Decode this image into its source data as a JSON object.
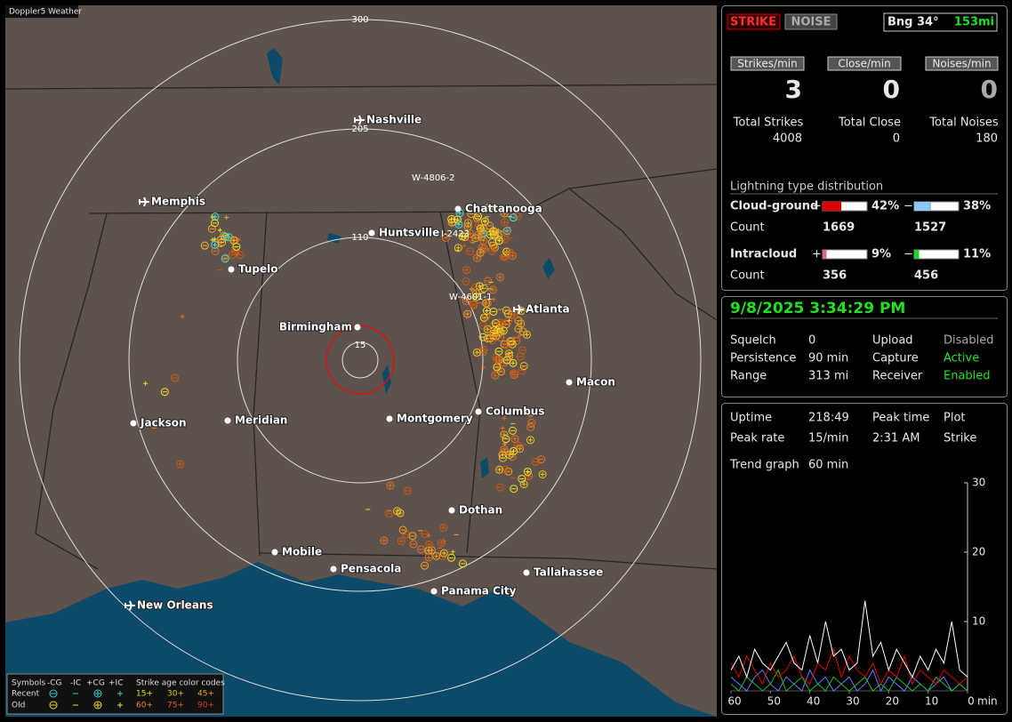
{
  "app_title": "Doppler5 Weather",
  "map": {
    "ring_labels": [
      "300",
      "205",
      "110",
      "15"
    ],
    "cities": [
      "Nashville",
      "Chattanooga",
      "Huntsville",
      "Memphis",
      "Tupelo",
      "Birmingham",
      "Atlanta",
      "Macon",
      "Columbus",
      "Montgomery",
      "Meridian",
      "Jackson",
      "Dothan",
      "Mobile",
      "Pensacola",
      "Tallahassee",
      "Panama City",
      "New Orleans"
    ],
    "storm_labels": [
      "W-4806-2",
      "I-2423",
      "W-4601-1"
    ],
    "legend": {
      "symbols_title": "Symbols",
      "symbol_headers": [
        "-CG",
        "-IC",
        "+CG",
        "+IC"
      ],
      "age_title": "Strike age color codes",
      "rows": [
        {
          "label": "Recent",
          "ages": [
            "15+",
            "30+",
            "45+"
          ]
        },
        {
          "label": "Old",
          "ages": [
            "60+",
            "75+",
            "90+"
          ]
        }
      ]
    }
  },
  "header": {
    "strike": "STRIKE",
    "noise": "NOISE",
    "bearing": "Bng 34°",
    "distance": "153mi"
  },
  "rates": [
    {
      "label": "Strikes/min",
      "value": 3,
      "total_label": "Total Strikes",
      "total": 4008
    },
    {
      "label": "Close/min",
      "value": 0,
      "total_label": "Total Close",
      "total": 0
    },
    {
      "label": "Noises/min",
      "value": 0,
      "total_label": "Total Noises",
      "total": 180
    }
  ],
  "distribution": {
    "title": "Lightning type distribution",
    "plus": "+",
    "minus": "−",
    "count_label": "Count",
    "rows": [
      {
        "label": "Cloud-ground",
        "values": [
          42,
          38
        ],
        "value_labels": [
          "42%",
          "38%"
        ],
        "colors": [
          "#e00000",
          "#8ec8f0"
        ],
        "counts": [
          1669,
          1527
        ]
      },
      {
        "label": "Intracloud",
        "values": [
          9,
          11
        ],
        "value_labels": [
          "9%",
          "11%"
        ],
        "colors": [
          "#e060a0",
          "#20d020"
        ],
        "counts": [
          356,
          456
        ]
      }
    ]
  },
  "datetime": "9/8/2025 3:34:29 PM",
  "settings": [
    [
      "Squelch",
      0,
      "Upload",
      "Disabled"
    ],
    [
      "Persistence",
      "90 min",
      "Capture",
      "Active"
    ],
    [
      "Range",
      "313 mi",
      "Receiver",
      "Enabled"
    ]
  ],
  "stats": [
    [
      "Uptime",
      "218:49",
      "Peak time",
      "Plot"
    ],
    [
      "Peak rate",
      "15/min",
      "2:31 AM",
      "Strike"
    ]
  ],
  "trend_label": "Trend graph",
  "trend_span": "60 min",
  "chart_data": {
    "type": "line",
    "x_unit": "min",
    "x": [
      60,
      58,
      56,
      54,
      52,
      50,
      48,
      46,
      44,
      42,
      40,
      38,
      36,
      34,
      32,
      30,
      28,
      26,
      24,
      22,
      20,
      18,
      16,
      14,
      12,
      10,
      8,
      6,
      4,
      2,
      0
    ],
    "xlim": [
      60,
      0
    ],
    "xticks": [
      60,
      50,
      40,
      30,
      20,
      10,
      0
    ],
    "ylim": [
      0,
      30
    ],
    "yticks": [
      10,
      20,
      30
    ],
    "series": [
      {
        "color": "#ffffff",
        "values": [
          3,
          5,
          2,
          6,
          4,
          3,
          5,
          7,
          4,
          3,
          8,
          4,
          10,
          5,
          6,
          3,
          4,
          13,
          5,
          7,
          3,
          6,
          4,
          2,
          5,
          3,
          6,
          4,
          10,
          3,
          2
        ]
      },
      {
        "color": "#e00000",
        "values": [
          4,
          2,
          5,
          3,
          1,
          4,
          2,
          3,
          5,
          2,
          1,
          4,
          3,
          6,
          2,
          5,
          3,
          2,
          4,
          1,
          3,
          2,
          5,
          1,
          3,
          2,
          1,
          3,
          2,
          1,
          2
        ]
      },
      {
        "color": "#20c020",
        "values": [
          1,
          0,
          2,
          1,
          0,
          1,
          3,
          0,
          1,
          2,
          0,
          1,
          0,
          2,
          1,
          0,
          1,
          2,
          0,
          1,
          0,
          2,
          1,
          0,
          1,
          0,
          2,
          1,
          0,
          1,
          0
        ]
      },
      {
        "color": "#6080ff",
        "values": [
          2,
          1,
          0,
          2,
          3,
          1,
          0,
          2,
          1,
          0,
          3,
          1,
          2,
          0,
          1,
          2,
          0,
          1,
          3,
          0,
          2,
          1,
          0,
          2,
          1,
          0,
          1,
          2,
          0,
          1,
          0
        ]
      }
    ]
  }
}
